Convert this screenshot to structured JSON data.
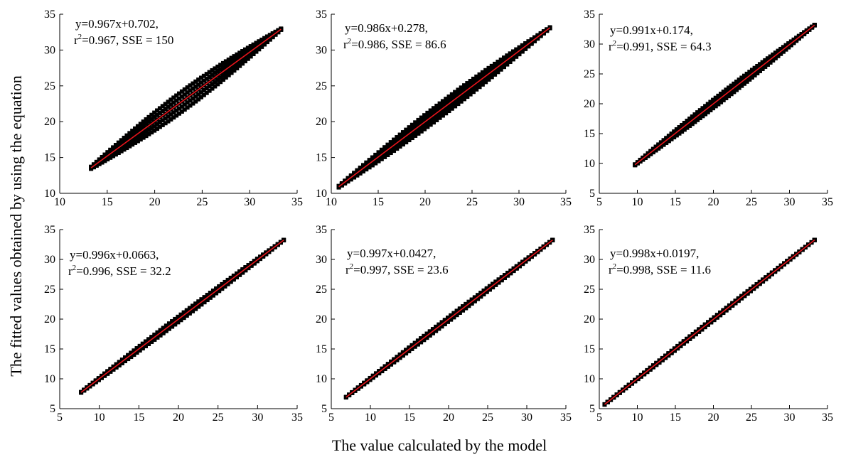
{
  "figure": {
    "ylabel": "The fitted values obtained by using the equation",
    "xlabel": "The value calculated by the model"
  },
  "colors": {
    "points": "#000000",
    "fit_line": "#e8141b",
    "axes": "#000000"
  },
  "chart_data": [
    {
      "type": "scatter",
      "grid": false,
      "xlim": [
        10,
        35
      ],
      "ylim": [
        10,
        35
      ],
      "xticks": [
        10,
        15,
        20,
        25,
        30,
        35
      ],
      "yticks": [
        10,
        15,
        20,
        25,
        30,
        35
      ],
      "fit": {
        "slope": 0.967,
        "intercept": 0.702,
        "r2": 0.967,
        "sse": 150
      },
      "annotation": {
        "line1": "y=0.967x+0.702,",
        "r_prefix": "r",
        "r_sup": "2",
        "line2_rest": "=0.967, SSE = 150"
      },
      "x_range": [
        13.3,
        33.3
      ],
      "spread": 1.4
    },
    {
      "type": "scatter",
      "grid": false,
      "xlim": [
        10,
        35
      ],
      "ylim": [
        10,
        35
      ],
      "xticks": [
        10,
        15,
        20,
        25,
        30,
        35
      ],
      "yticks": [
        10,
        15,
        20,
        25,
        30,
        35
      ],
      "fit": {
        "slope": 0.986,
        "intercept": 0.278,
        "r2": 0.986,
        "sse": 86.6
      },
      "annotation": {
        "line1": "y=0.986x+0.278,",
        "r_prefix": "r",
        "r_sup": "2",
        "line2_rest": "=0.986, SSE = 86.6"
      },
      "x_range": [
        10.8,
        33.3
      ],
      "spread": 1.0
    },
    {
      "type": "scatter",
      "grid": false,
      "xlim": [
        5,
        35
      ],
      "ylim": [
        5,
        35
      ],
      "xticks": [
        5,
        10,
        15,
        20,
        25,
        30,
        35
      ],
      "yticks": [
        5,
        10,
        15,
        20,
        25,
        30,
        35
      ],
      "fit": {
        "slope": 0.991,
        "intercept": 0.174,
        "r2": 0.991,
        "sse": 64.3
      },
      "annotation": {
        "line1": "y=0.991x+0.174,",
        "r_prefix": "r",
        "r_sup": "2",
        "line2_rest": "=0.991, SSE = 64.3"
      },
      "x_range": [
        9.7,
        33.3
      ],
      "spread": 0.7
    },
    {
      "type": "scatter",
      "grid": false,
      "xlim": [
        5,
        35
      ],
      "ylim": [
        5,
        35
      ],
      "xticks": [
        5,
        10,
        15,
        20,
        25,
        30,
        35
      ],
      "yticks": [
        5,
        10,
        15,
        20,
        25,
        30,
        35
      ],
      "fit": {
        "slope": 0.996,
        "intercept": 0.0663,
        "r2": 0.996,
        "sse": 32.2
      },
      "annotation": {
        "line1": "y=0.996x+0.0663,",
        "r_prefix": "r",
        "r_sup": "2",
        "line2_rest": "=0.996, SSE = 32.2"
      },
      "x_range": [
        7.7,
        33.3
      ],
      "spread": 0.45
    },
    {
      "type": "scatter",
      "grid": false,
      "xlim": [
        5,
        35
      ],
      "ylim": [
        5,
        35
      ],
      "xticks": [
        5,
        10,
        15,
        20,
        25,
        30,
        35
      ],
      "yticks": [
        5,
        10,
        15,
        20,
        25,
        30,
        35
      ],
      "fit": {
        "slope": 0.997,
        "intercept": 0.0427,
        "r2": 0.997,
        "sse": 23.6
      },
      "annotation": {
        "line1": "y=0.997x+0.0427,",
        "r_prefix": "r",
        "r_sup": "2",
        "line2_rest": "=0.997, SSE = 23.6"
      },
      "x_range": [
        6.9,
        33.3
      ],
      "spread": 0.35
    },
    {
      "type": "scatter",
      "grid": false,
      "xlim": [
        5,
        35
      ],
      "ylim": [
        5,
        35
      ],
      "xticks": [
        5,
        10,
        15,
        20,
        25,
        30,
        35
      ],
      "yticks": [
        5,
        10,
        15,
        20,
        25,
        30,
        35
      ],
      "fit": {
        "slope": 0.998,
        "intercept": 0.0197,
        "r2": 0.998,
        "sse": 11.6
      },
      "annotation": {
        "line1": "y=0.998x+0.0197,",
        "r_prefix": "r",
        "r_sup": "2",
        "line2_rest": "=0.998, SSE = 11.6"
      },
      "x_range": [
        5.7,
        33.3
      ],
      "spread": 0.22
    }
  ]
}
